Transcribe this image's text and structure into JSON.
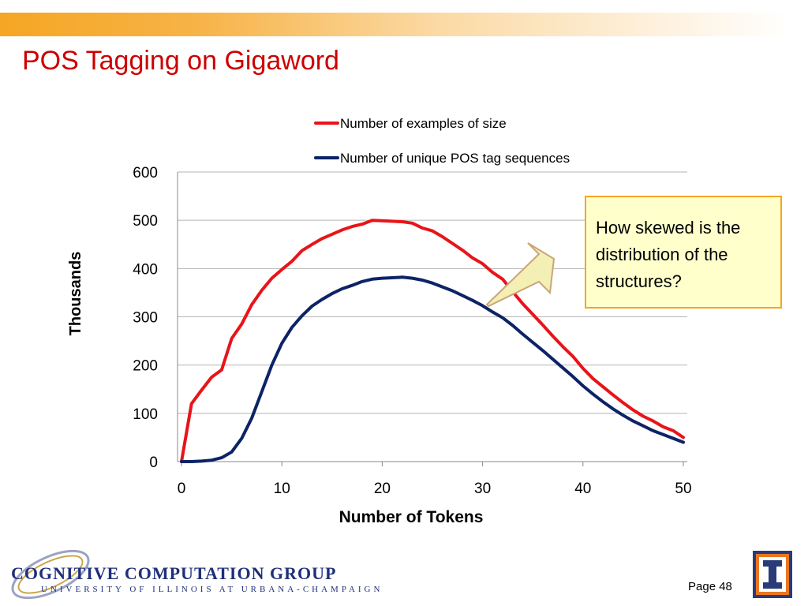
{
  "slide": {
    "title": "POS Tagging on Gigaword",
    "callout": "How skewed is the distribution of the structures?",
    "page": "Page 48",
    "logo_main": "COGNITIVE COMPUTATION GROUP",
    "logo_sub": "UNIVERSITY OF ILLINOIS AT URBANA-CHAMPAIGN"
  },
  "colors": {
    "title": "#cc0000",
    "series_red": "#e8141a",
    "series_blue": "#0c2366",
    "callout_border": "#f5a623",
    "callout_fill": "#ffffcc",
    "arrow_fill": "#f4efb5",
    "arrow_stroke": "#c9a67a"
  },
  "chart_data": {
    "type": "line",
    "xlabel": "Number of Tokens",
    "ylabel": "Thousands",
    "xlim": [
      0,
      50
    ],
    "ylim": [
      0,
      600
    ],
    "xticks": [
      0,
      10,
      20,
      30,
      40,
      50
    ],
    "yticks": [
      0,
      100,
      200,
      300,
      400,
      500,
      600
    ],
    "grid": "horizontal",
    "legend": "top",
    "series": [
      {
        "name": "Number of examples of size",
        "color": "#e8141a",
        "x": [
          0,
          1,
          2,
          3,
          4,
          5,
          6,
          7,
          8,
          9,
          10,
          11,
          12,
          13,
          14,
          15,
          16,
          17,
          18,
          19,
          20,
          21,
          22,
          23,
          24,
          25,
          26,
          27,
          28,
          29,
          30,
          31,
          32,
          33,
          34,
          35,
          36,
          37,
          38,
          39,
          40,
          41,
          42,
          43,
          44,
          45,
          46,
          47,
          48,
          49,
          50
        ],
        "values": [
          0,
          120,
          148,
          175,
          190,
          255,
          285,
          325,
          355,
          380,
          398,
          415,
          437,
          450,
          462,
          471,
          480,
          487,
          492,
          500,
          499,
          498,
          497,
          494,
          484,
          478,
          466,
          452,
          438,
          422,
          410,
          392,
          378,
          352,
          327,
          305,
          283,
          260,
          238,
          218,
          193,
          172,
          155,
          138,
          122,
          107,
          94,
          84,
          72,
          64,
          50
        ]
      },
      {
        "name": "Number of unique POS tag sequences",
        "color": "#0c2366",
        "x": [
          0,
          1,
          2,
          3,
          4,
          5,
          6,
          7,
          8,
          9,
          10,
          11,
          12,
          13,
          14,
          15,
          16,
          17,
          18,
          19,
          20,
          21,
          22,
          23,
          24,
          25,
          26,
          27,
          28,
          29,
          30,
          31,
          32,
          33,
          34,
          35,
          36,
          37,
          38,
          39,
          40,
          41,
          42,
          43,
          44,
          45,
          46,
          47,
          48,
          49,
          50
        ],
        "values": [
          0,
          0,
          1,
          3,
          8,
          20,
          48,
          90,
          145,
          200,
          245,
          278,
          302,
          322,
          336,
          348,
          358,
          365,
          373,
          378,
          380,
          381,
          382,
          380,
          376,
          370,
          362,
          354,
          344,
          334,
          323,
          310,
          298,
          282,
          264,
          247,
          230,
          212,
          194,
          176,
          157,
          140,
          124,
          109,
          96,
          84,
          74,
          64,
          56,
          48,
          40
        ]
      }
    ]
  }
}
